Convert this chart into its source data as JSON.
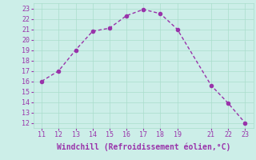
{
  "x": [
    11,
    12,
    13,
    14,
    15,
    16,
    17,
    18,
    19,
    21,
    22,
    23
  ],
  "y": [
    16,
    17,
    19,
    20.8,
    21.1,
    22.3,
    22.9,
    22.5,
    21.0,
    15.6,
    13.9,
    12.0
  ],
  "line_color": "#9933aa",
  "marker_color": "#9933aa",
  "bg_color": "#cceee8",
  "grid_color": "#aaddcc",
  "xlabel": "Windchill (Refroidissement éolien,°C)",
  "xlabel_color": "#9933aa",
  "tick_color": "#9933aa",
  "xlim": [
    10.5,
    23.5
  ],
  "ylim": [
    11.5,
    23.5
  ],
  "xticks": [
    11,
    12,
    13,
    14,
    15,
    16,
    17,
    18,
    19,
    21,
    22,
    23
  ],
  "yticks": [
    12,
    13,
    14,
    15,
    16,
    17,
    18,
    19,
    20,
    21,
    22,
    23
  ],
  "marker_size": 3,
  "linewidth": 1.0,
  "fontsize_ticks": 6,
  "fontsize_xlabel": 7
}
